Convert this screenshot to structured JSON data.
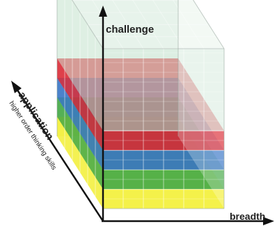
{
  "axes": {
    "vertical": "challenge",
    "horizontal": "breadth",
    "depth": "application",
    "depth_sub": "higher order thinking skills"
  },
  "layers": [
    {
      "name": "yellow",
      "color": "#f2ee2a"
    },
    {
      "name": "green",
      "color": "#3aa43c"
    },
    {
      "name": "blue",
      "color": "#2f6fc4"
    },
    {
      "name": "red",
      "color": "#d9232e"
    },
    {
      "name": "light-green",
      "color": "#bfe0c9"
    }
  ],
  "colors": {
    "axis": "#111111",
    "grid": "#ffffff"
  }
}
